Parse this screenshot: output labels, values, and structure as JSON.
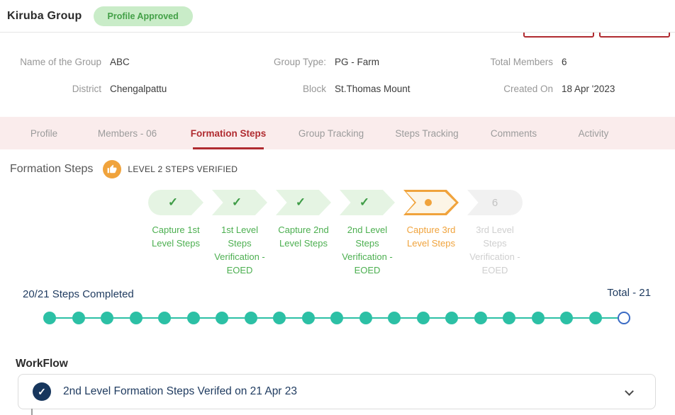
{
  "header": {
    "title": "Kiruba Group",
    "status_badge": "Profile Approved"
  },
  "info": {
    "fields": [
      {
        "label": "Name of the Group",
        "value": "ABC"
      },
      {
        "label": "Group Type:",
        "value": "PG - Farm"
      },
      {
        "label": "Total Members",
        "value": "6"
      },
      {
        "label": "District",
        "value": "Chengalpattu"
      },
      {
        "label": "Block",
        "value": "St.Thomas Mount"
      },
      {
        "label": "Created On",
        "value": "18 Apr '2023"
      }
    ]
  },
  "tabs": [
    {
      "label": "Profile",
      "active": false
    },
    {
      "label": "Members - 06",
      "active": false
    },
    {
      "label": "Formation Steps",
      "active": true
    },
    {
      "label": "Group Tracking",
      "active": false
    },
    {
      "label": "Steps Tracking",
      "active": false
    },
    {
      "label": "Comments",
      "active": false
    },
    {
      "label": "Activity",
      "active": false
    }
  ],
  "formation": {
    "heading": "Formation Steps",
    "badge_text": "LEVEL 2 STEPS VERIFIED",
    "steps": [
      {
        "label": "Capture 1st Level Steps",
        "state": "done"
      },
      {
        "label": "1st Level Steps Verification - EOED",
        "state": "done"
      },
      {
        "label": "Capture 2nd Level Steps",
        "state": "done"
      },
      {
        "label": "2nd Level Steps Verification - EOED",
        "state": "done"
      },
      {
        "label": "Capture 3rd Level Steps",
        "state": "active"
      },
      {
        "label": "3rd Level Steps Verification - EOED",
        "state": "pending",
        "number": "6"
      }
    ]
  },
  "progress": {
    "label": "20/21 Steps Completed",
    "completed": 20,
    "total": 21,
    "total_label": "Total - 21"
  },
  "workflow": {
    "heading": "WorkFlow",
    "items": [
      {
        "text": "2nd Level Formation Steps Verifed on 21 Apr 23",
        "state": "done"
      }
    ]
  },
  "icons": {
    "check": "✓"
  },
  "colors": {
    "accent_red": "#B02B30",
    "badge_bg": "#C9ECC8",
    "badge_green": "#43A047",
    "tab_bar_bg": "#FAECEC",
    "chev_green": "#E5F4E3",
    "chev_cream": "#FCF5E6",
    "check_green": "#3F9C47",
    "label_green": "#4CAF50",
    "accent_orange": "#F0A33C",
    "teal": "#2CC0A5",
    "dot_blue": "#3A6BC4",
    "navy": "#1E3A5F",
    "navy_dark": "#17365D"
  }
}
